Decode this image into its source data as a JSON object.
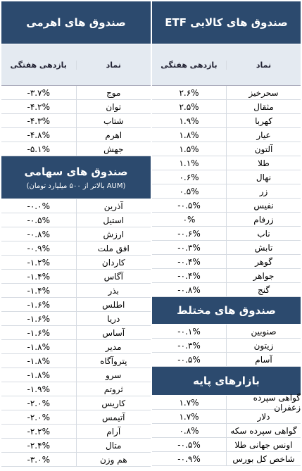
{
  "right": [
    {
      "title": "صندوق های کالایی ETF",
      "header": [
        "نماد",
        "بازدهی هفتگی"
      ],
      "rows": [
        [
          "سحرخیز",
          "۲.۶%"
        ],
        [
          "مثقال",
          "۲.۵%"
        ],
        [
          "کهربا",
          "۱.۹%"
        ],
        [
          "عیار",
          "۱.۸%"
        ],
        [
          "آلتون",
          "۱.۵%"
        ],
        [
          "طلا",
          "۱.۱%"
        ],
        [
          "نهال",
          "۰.۶%"
        ],
        [
          "زر",
          "۰.۵%"
        ],
        [
          "نفیس",
          "-۰.۵%"
        ],
        [
          "زرفام",
          "۰%"
        ],
        [
          "ناب",
          "-۰.۶%"
        ],
        [
          "تابش",
          "-۰.۳%"
        ],
        [
          "گوهر",
          "-۰.۴%"
        ],
        [
          "جواهر",
          "-۰.۴%"
        ],
        [
          "گنج",
          "-۰.۸%"
        ]
      ]
    },
    {
      "title": "صندوق های مختلط",
      "rows": [
        [
          "صنوبین",
          "-۰.۱%"
        ],
        [
          "زیتون",
          "-۰.۳%"
        ],
        [
          "آسام",
          "-۰.۵%"
        ]
      ]
    },
    {
      "title": "بازارهای پایه",
      "rows": [
        [
          "گواهی سپرده زعفران",
          "۱.۷%"
        ],
        [
          "دلار",
          "۱.۷%"
        ],
        [
          "گواهی سپرده سکه",
          "۰.۸%"
        ],
        [
          "اونس جهانی طلا",
          "-۰.۵%"
        ],
        [
          "شاخص کل بورس",
          "-۰.۹%"
        ]
      ]
    }
  ],
  "left": [
    {
      "title": "صندوق های اهرمی",
      "header": [
        "نماد",
        "بازدهی هفتگی"
      ],
      "rows": [
        [
          "موج",
          "-۳.۷%"
        ],
        [
          "توان",
          "-۴.۲%"
        ],
        [
          "شتاب",
          "-۴.۳%"
        ],
        [
          "اهرم",
          "-۴.۸%"
        ],
        [
          "جهش",
          "-۵.۱%"
        ]
      ]
    },
    {
      "title": "صندوق های سهامی",
      "subtitle": "(AUM بالاتر از ۵۰۰ میلیارد تومان)",
      "rows": [
        [
          "آذرین",
          "-۰.۰%"
        ],
        [
          "استیل",
          "-۰.۵%"
        ],
        [
          "ارزش",
          "-۰.۸%"
        ],
        [
          "افق ملت",
          "-۰.۹%"
        ],
        [
          "کاردان",
          "-۱.۲%"
        ],
        [
          "آگاس",
          "-۱.۴%"
        ],
        [
          "بذر",
          "-۱.۴%"
        ],
        [
          "اطلس",
          "-۱.۶%"
        ],
        [
          "دریا",
          "-۱.۶%"
        ],
        [
          "آساس",
          "-۱.۶%"
        ],
        [
          "مدیر",
          "-۱.۸%"
        ],
        [
          "پتروآگاه",
          "-۱.۸%"
        ],
        [
          "سرو",
          "-۱.۸%"
        ],
        [
          "ثروتم",
          "-۱.۹%"
        ],
        [
          "کاریس",
          "-۲.۰%"
        ],
        [
          "آتیمس",
          "-۲.۰%"
        ],
        [
          "آرام",
          "-۲.۲%"
        ],
        [
          "متال",
          "-۲.۴%"
        ],
        [
          "هم وزن",
          "-۳.۰%"
        ]
      ]
    }
  ]
}
